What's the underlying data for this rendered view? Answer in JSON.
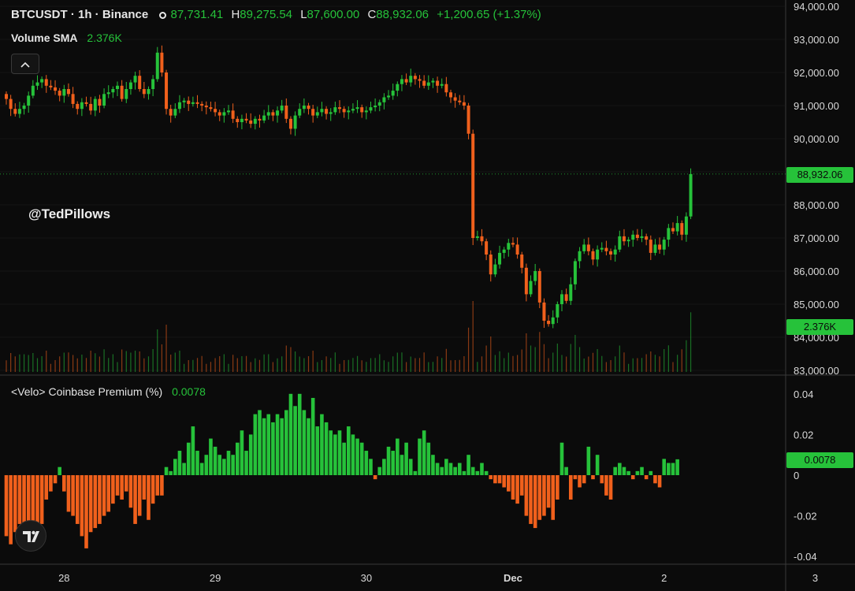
{
  "header": {
    "symbol": "BTCUSDT · 1h · Binance",
    "open_label": "O",
    "open": "87,731.41",
    "high_label": "H",
    "high": "89,275.54",
    "low_label": "L",
    "low": "87,600.00",
    "close_label": "C",
    "close": "88,932.06",
    "change": "+1,200.65 (+1.37%)"
  },
  "volume_sma": {
    "label": "Volume SMA",
    "value": "2.376K"
  },
  "watermark": "@TedPillows",
  "premium": {
    "label": "<Velo> Coinbase Premium (%)",
    "value": "0.0078"
  },
  "price_tags": {
    "last_price": "88,932.06",
    "volume": "2.376K",
    "premium": "0.0078"
  },
  "colors": {
    "up": "#26c23a",
    "down": "#f0601c",
    "background": "#0b0b0b",
    "grid": "#1f1f1f"
  },
  "icons": {
    "collapse": "chevron-up-icon",
    "logo": "tradingview-logo-icon"
  },
  "chart_data": [
    {
      "type": "candlestick",
      "title": "BTCUSDT · 1h · Binance",
      "ylim": [
        83000,
        94000
      ],
      "y_ticks": [
        "83,000.00",
        "84,000.00",
        "85,000.00",
        "86,000.00",
        "87,000.00",
        "88,000.00",
        "89,000.00",
        "90,000.00",
        "91,000.00",
        "92,000.00",
        "93,000.00",
        "94,000.00"
      ],
      "y_tick_values": [
        83000,
        84000,
        85000,
        86000,
        87000,
        88000,
        89000,
        90000,
        91000,
        92000,
        93000,
        94000
      ],
      "x_ticks": [
        "28",
        "29",
        "30",
        "Dec",
        "2",
        "3"
      ],
      "x_tick_index": [
        13,
        47,
        81,
        114,
        148,
        182
      ],
      "last_price": 88932.06,
      "closes": [
        91200,
        90900,
        90750,
        90900,
        91000,
        91300,
        91600,
        91700,
        91800,
        91600,
        91550,
        91450,
        91300,
        91500,
        91350,
        91050,
        90900,
        91100,
        91050,
        90850,
        91200,
        91000,
        91350,
        91400,
        91500,
        91600,
        91200,
        91500,
        91700,
        91900,
        91500,
        91350,
        91500,
        91800,
        92600,
        92000,
        90900,
        90700,
        90900,
        91100,
        91150,
        91050,
        91100,
        91050,
        91000,
        90950,
        90900,
        90800,
        90700,
        90800,
        90850,
        90600,
        90500,
        90600,
        90550,
        90450,
        90600,
        90550,
        90700,
        90800,
        90700,
        90850,
        91000,
        90600,
        90300,
        90700,
        90900,
        91000,
        90900,
        90700,
        90800,
        90900,
        90750,
        90800,
        90950,
        90900,
        90800,
        90850,
        90900,
        90950,
        90800,
        90850,
        90950,
        91000,
        91100,
        91250,
        91300,
        91450,
        91650,
        91800,
        91700,
        91900,
        91800,
        91750,
        91600,
        91700,
        91750,
        91600,
        91650,
        91400,
        91250,
        91150,
        91100,
        91000,
        90150,
        87000,
        87050,
        86900,
        86500,
        85900,
        86200,
        86550,
        86650,
        86850,
        86800,
        86500,
        86100,
        85300,
        85700,
        86000,
        85050,
        84500,
        84400,
        84600,
        85000,
        85300,
        85100,
        85600,
        86300,
        86600,
        86800,
        86600,
        86350,
        86650,
        86700,
        86600,
        86500,
        86650,
        87050,
        86900,
        86950,
        87100,
        87000,
        87050,
        86950,
        86550,
        86800,
        86650,
        86950,
        87300,
        87200,
        87450,
        87100,
        87650,
        88932
      ]
    },
    {
      "type": "bar",
      "title": "<Velo> Coinbase Premium (%)",
      "ylim": [
        -0.05,
        0.05
      ],
      "y_ticks": [
        "0.04",
        "0.02",
        "0",
        "-0.02",
        "-0.04"
      ],
      "y_tick_values": [
        0.04,
        0.02,
        0,
        -0.02,
        -0.04
      ],
      "last_value": 0.0078,
      "values": [
        -0.03,
        -0.034,
        -0.028,
        -0.024,
        -0.026,
        -0.03,
        -0.032,
        -0.029,
        -0.024,
        -0.012,
        -0.008,
        -0.004,
        0.004,
        -0.008,
        -0.018,
        -0.02,
        -0.024,
        -0.03,
        -0.036,
        -0.028,
        -0.026,
        -0.024,
        -0.02,
        -0.018,
        -0.014,
        -0.01,
        -0.012,
        -0.008,
        -0.016,
        -0.024,
        -0.02,
        -0.012,
        -0.022,
        -0.014,
        -0.01,
        -0.01,
        0.004,
        0.002,
        0.008,
        0.012,
        0.006,
        0.016,
        0.024,
        0.012,
        0.006,
        0.01,
        0.018,
        0.014,
        0.01,
        0.008,
        0.012,
        0.01,
        0.016,
        0.022,
        0.012,
        0.02,
        0.03,
        0.032,
        0.028,
        0.03,
        0.026,
        0.03,
        0.028,
        0.032,
        0.04,
        0.034,
        0.04,
        0.032,
        0.028,
        0.038,
        0.024,
        0.03,
        0.026,
        0.022,
        0.02,
        0.022,
        0.016,
        0.024,
        0.02,
        0.018,
        0.016,
        0.012,
        0.008,
        -0.002,
        0.004,
        0.008,
        0.014,
        0.012,
        0.018,
        0.01,
        0.016,
        0.008,
        0.002,
        0.018,
        0.022,
        0.016,
        0.01,
        0.006,
        0.004,
        0.008,
        0.006,
        0.004,
        0.006,
        0.002,
        0.01,
        0.004,
        0.002,
        0.006,
        0.002,
        -0.002,
        -0.004,
        -0.004,
        -0.006,
        -0.008,
        -0.012,
        -0.014,
        -0.01,
        -0.02,
        -0.024,
        -0.026,
        -0.022,
        -0.02,
        -0.016,
        -0.022,
        -0.012,
        0.016,
        0.004,
        -0.012,
        -0.002,
        -0.006,
        -0.004,
        0.014,
        -0.002,
        0.01,
        -0.004,
        -0.01,
        -0.012,
        0.004,
        0.006,
        0.004,
        0.002,
        -0.002,
        0.002,
        0.004,
        -0.002,
        0.002,
        -0.004,
        -0.006,
        0.008,
        0.006,
        0.006,
        0.0078
      ]
    }
  ]
}
